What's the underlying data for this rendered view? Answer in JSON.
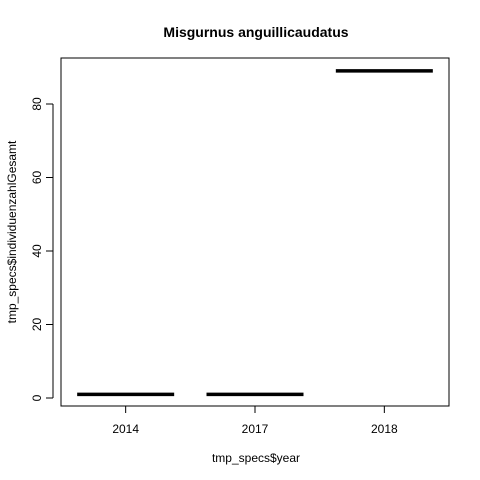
{
  "chart_data": {
    "type": "boxplot",
    "title": "Misgurnus anguillicaudatus",
    "xlabel": "tmp_specs$year",
    "ylabel": "tmp_specs$individuenzahlGesamt",
    "categories": [
      "2014",
      "2017",
      "2018"
    ],
    "values": [
      1,
      1,
      89
    ],
    "ylim": [
      -3,
      92
    ],
    "yticks": [
      0,
      20,
      40,
      60,
      80
    ],
    "grid": false,
    "legend": "none",
    "colors": {
      "line": "#000000",
      "background": "#ffffff"
    }
  }
}
